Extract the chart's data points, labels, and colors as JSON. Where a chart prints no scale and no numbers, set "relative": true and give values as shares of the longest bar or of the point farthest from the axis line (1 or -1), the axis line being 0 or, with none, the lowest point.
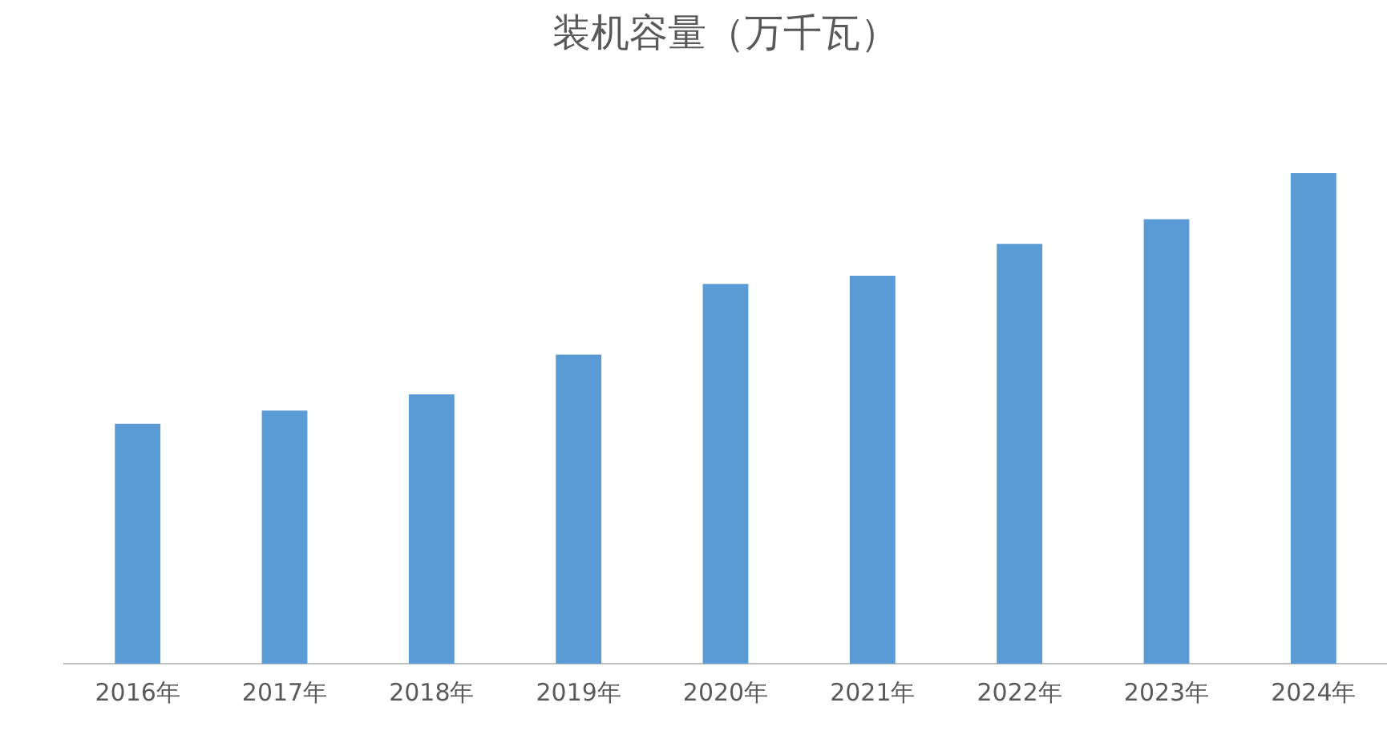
{
  "chart_data": {
    "type": "bar",
    "title": "装机容量（万千瓦）",
    "categories": [
      "2016年",
      "2017年",
      "2018年",
      "2019年",
      "2020年",
      "2021年",
      "2022年",
      "2023年",
      "2024年"
    ],
    "values": [
      0.489,
      0.516,
      0.549,
      0.63,
      0.774,
      0.791,
      0.856,
      0.906,
      1
    ],
    "color": "#5b9bd5",
    "relative": true,
    "grid": false,
    "legend": false
  }
}
